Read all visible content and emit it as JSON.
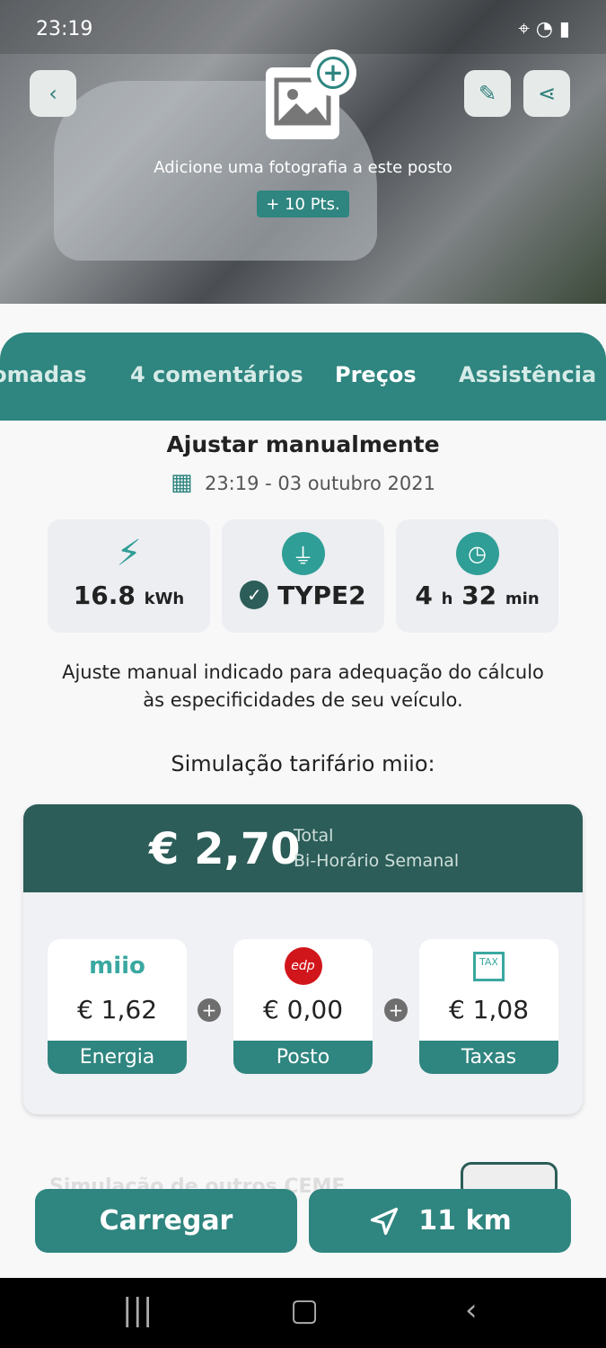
{
  "status": {
    "time": "23:19"
  },
  "header": {
    "add_photo_text": "Adicione uma fotografia a este posto",
    "points_badge": "+ 10 Pts."
  },
  "tabs": [
    {
      "label": "Tomadas"
    },
    {
      "label": "4 comentários"
    },
    {
      "label": "Preços",
      "active": true
    },
    {
      "label": "Assistência"
    }
  ],
  "manual": {
    "title": "Ajustar manualmente",
    "datetime": "23:19 - 03 outubro 2021",
    "energy": {
      "value": "16.8",
      "unit": "kWh"
    },
    "connector": "TYPE2",
    "duration": {
      "h": "4",
      "h_unit": "h",
      "m": "32",
      "m_unit": "min"
    },
    "note": "Ajuste manual indicado para adequação do cálculo às especificidades de seu veículo."
  },
  "simulation": {
    "title": "Simulação tarifário miio:",
    "total": "€ 2,70",
    "total_label": "Total",
    "tariff": "Bi-Horário Semanal",
    "items": [
      {
        "logo": "miio",
        "amount": "€ 1,62",
        "label": "Energia"
      },
      {
        "logo": "edp",
        "amount": "€ 0,00",
        "label": "Posto"
      },
      {
        "logo": "TAX",
        "amount": "€ 1,08",
        "label": "Taxas"
      }
    ]
  },
  "other_sim_title": "Simulação de outros CEME",
  "actions": {
    "charge": "Carregar",
    "distance": "11 km"
  },
  "colors": {
    "primary": "#2f857f",
    "dark": "#2c5d58"
  }
}
